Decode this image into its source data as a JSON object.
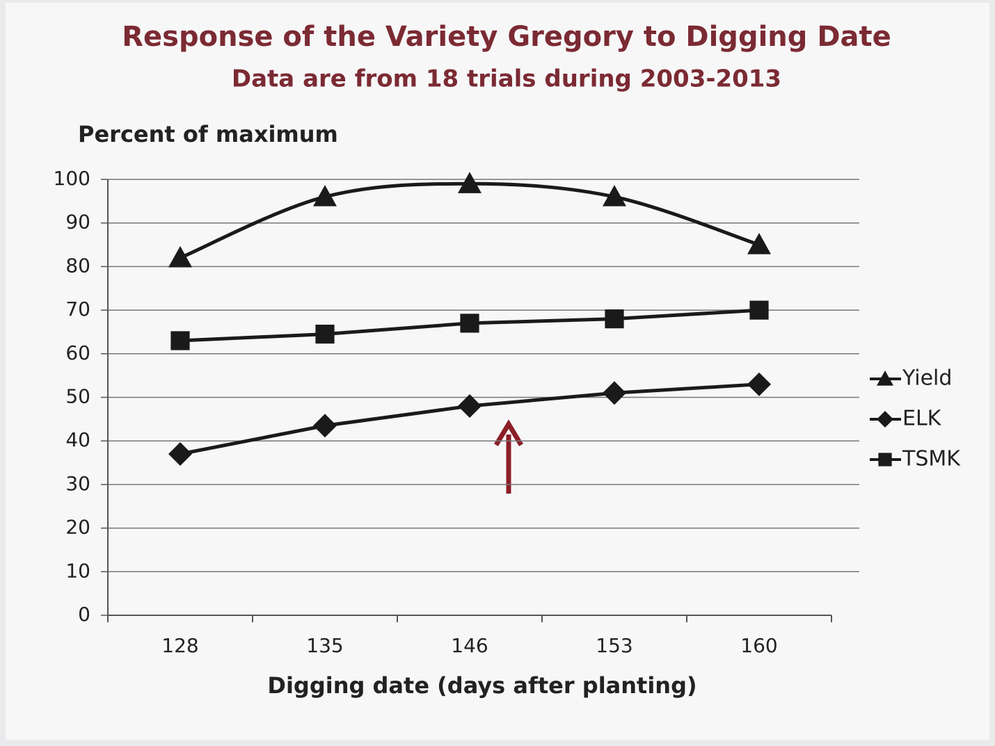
{
  "chart_data": {
    "type": "line",
    "title": "Response of the Variety Gregory to Digging Date",
    "subtitle": "Data are from 18 trials during 2003-2013",
    "y_label": "Percent of maximum",
    "x_label": "Digging date (days after planting)",
    "categories": [
      "128",
      "135",
      "146",
      "153",
      "160"
    ],
    "series": [
      {
        "name": "Yield",
        "color": "#1a1a1a",
        "marker": "triangle",
        "smooth": true,
        "values": [
          82,
          96,
          99,
          96,
          85
        ]
      },
      {
        "name": "ELK",
        "color": "#1a1a1a",
        "marker": "diamond",
        "smooth": false,
        "values": [
          37,
          43.5,
          48,
          51,
          53
        ]
      },
      {
        "name": "TSMK",
        "color": "#1a1a1a",
        "marker": "square",
        "smooth": false,
        "values": [
          63,
          64.5,
          67,
          68,
          70
        ]
      }
    ],
    "ylim": [
      0,
      100
    ],
    "yticks": [
      0,
      10,
      20,
      30,
      40,
      50,
      60,
      70,
      80,
      90,
      100
    ],
    "grid": true,
    "legend": "right"
  }
}
